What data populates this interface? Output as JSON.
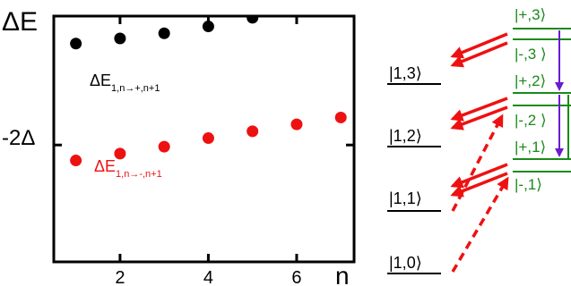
{
  "chart_data": {
    "type": "scatter",
    "ylabel": "ΔE",
    "xlabel": "n",
    "xlim": [
      0.5,
      7.3
    ],
    "x_ticks": [
      2,
      4,
      6
    ],
    "x_tick_labels": [
      "2",
      "4",
      "6"
    ],
    "y_tick_label": "-2Δ",
    "y_tick_value": -2,
    "ylim": [
      -5.4,
      1.75
    ],
    "series": [
      {
        "name": "ΔE1,n→+,n+1",
        "color": "#000000",
        "x": [
          1,
          2,
          3,
          4,
          5
        ],
        "y": [
          0.95,
          1.1,
          1.25,
          1.45,
          1.7
        ]
      },
      {
        "name": "ΔE1,n→-,n+1",
        "color": "#ee1111",
        "x": [
          1,
          2,
          3,
          4,
          5,
          6,
          7
        ],
        "y": [
          -2.45,
          -2.25,
          -2.05,
          -1.8,
          -1.6,
          -1.4,
          -1.2
        ]
      }
    ]
  },
  "diagram": {
    "left_levels": [
      "|1,3⟩",
      "|1,2⟩",
      "|1,1⟩",
      "|1,0⟩"
    ],
    "right_levels": [
      "|+,3⟩",
      "|-,3 ⟩",
      "|+,2⟩",
      "|-,2 ⟩",
      "|+,1⟩",
      "|-,1⟩"
    ],
    "colors": {
      "left_levels": "#000000",
      "right_levels": "#1a8a1a",
      "arrows": "#ee1111",
      "decay": "#6a1ad0"
    }
  }
}
